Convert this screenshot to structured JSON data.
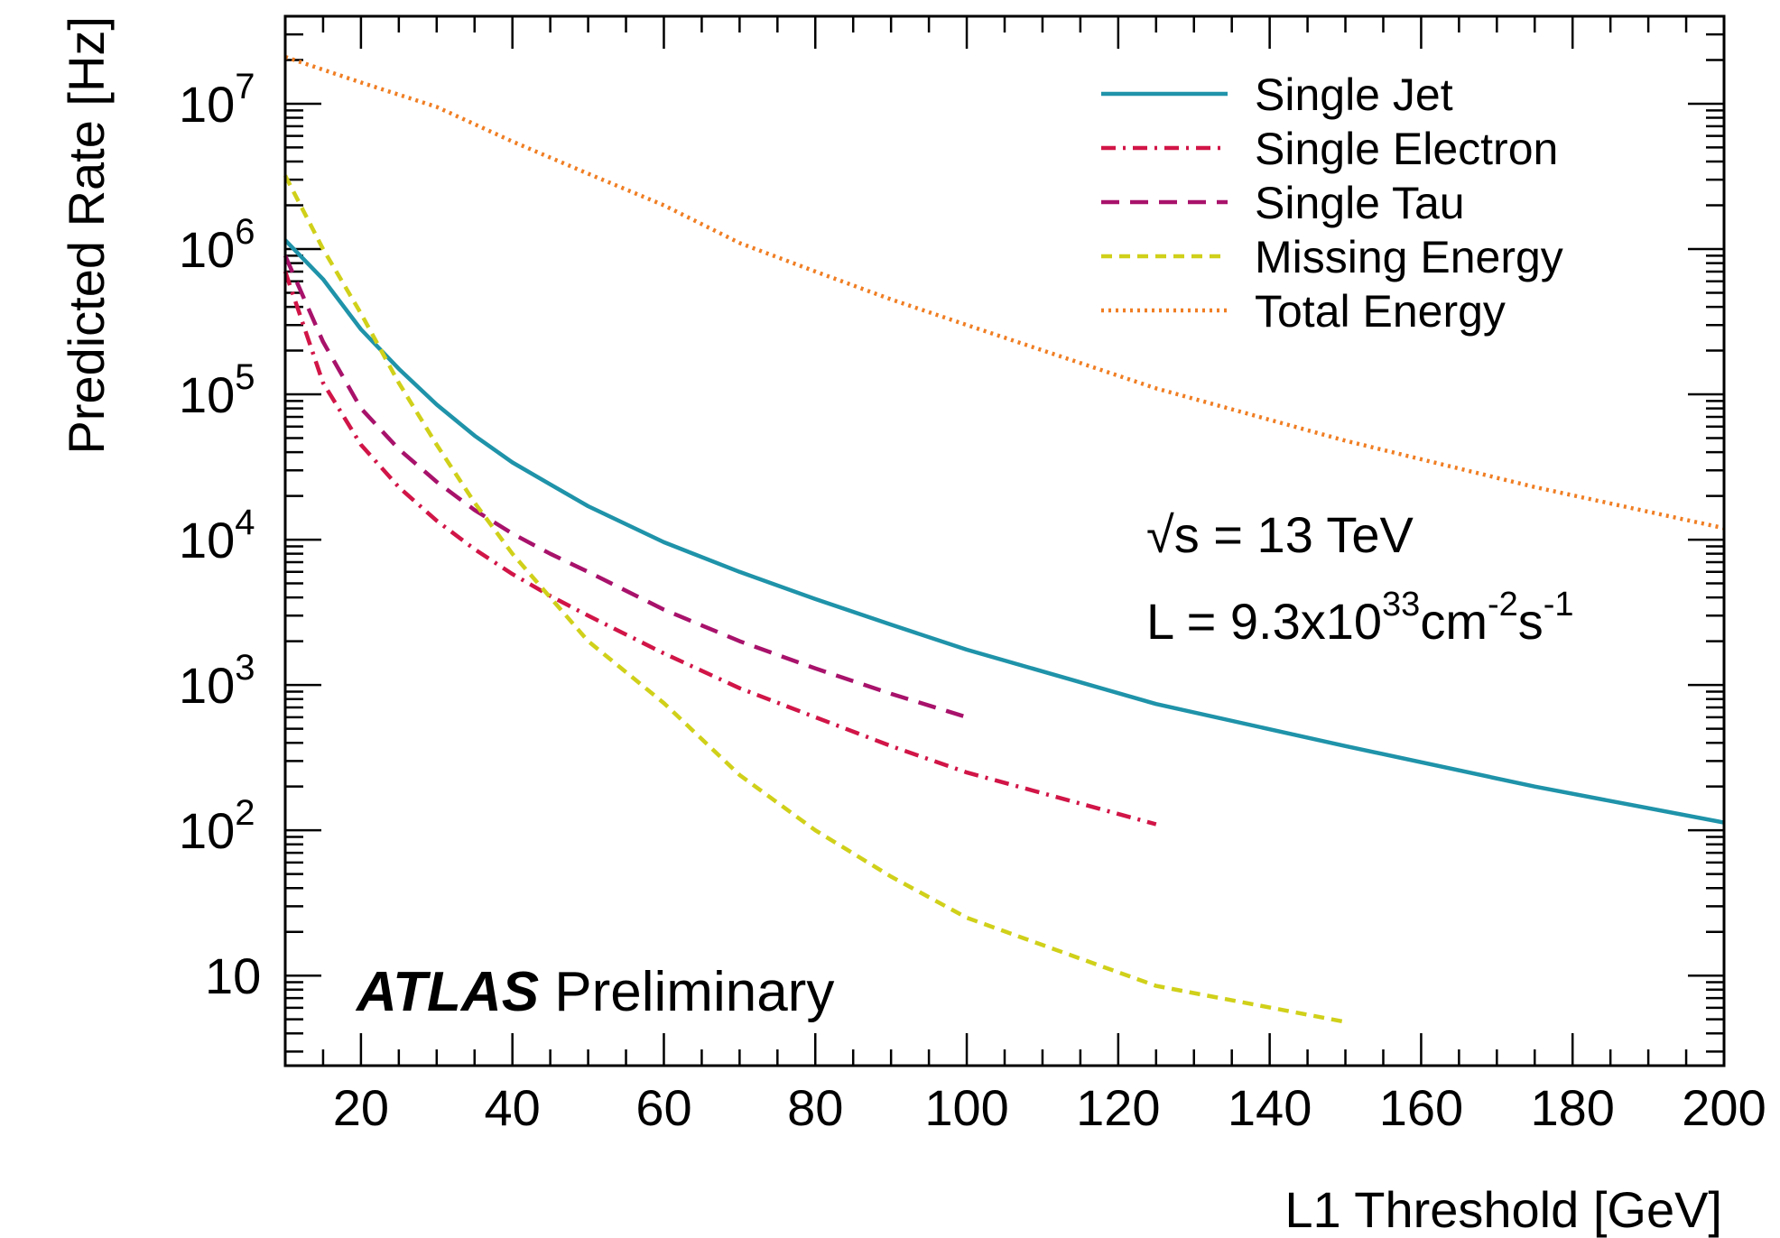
{
  "chart_data": {
    "type": "line",
    "xlabel": "L1 Threshold [GeV]",
    "ylabel": "Predicted Rate [Hz]",
    "xlim": [
      10,
      200
    ],
    "ylim": [
      2.4,
      40000000
    ],
    "yscale": "log",
    "x_ticks": [
      20,
      40,
      60,
      80,
      100,
      120,
      140,
      160,
      180,
      200
    ],
    "y_ticks": [
      {
        "value": 10,
        "base": "10",
        "exp": ""
      },
      {
        "value": 100,
        "base": "10",
        "exp": "2"
      },
      {
        "value": 1000,
        "base": "10",
        "exp": "3"
      },
      {
        "value": 10000,
        "base": "10",
        "exp": "4"
      },
      {
        "value": 100000,
        "base": "10",
        "exp": "5"
      },
      {
        "value": 1000000,
        "base": "10",
        "exp": "6"
      },
      {
        "value": 10000000,
        "base": "10",
        "exp": "7"
      }
    ],
    "legend_position": "top-right",
    "series": [
      {
        "name": "Single Jet",
        "color": "#1f93a9",
        "dash": "solid",
        "x": [
          10,
          15,
          20,
          25,
          30,
          35,
          40,
          45,
          50,
          60,
          70,
          80,
          90,
          100,
          125,
          150,
          175,
          200
        ],
        "y": [
          1150000,
          620000,
          280000,
          150000,
          85000,
          52000,
          34000,
          24000,
          17000,
          9600,
          6000,
          3900,
          2600,
          1750,
          740,
          380,
          200,
          113
        ]
      },
      {
        "name": "Single Electron",
        "color": "#d11547",
        "dash": "dashdot",
        "x": [
          10,
          15,
          20,
          25,
          30,
          35,
          40,
          45,
          50,
          60,
          70,
          80,
          90,
          100,
          125
        ],
        "y": [
          700000,
          120000,
          45000,
          23000,
          13500,
          8600,
          5800,
          4100,
          3000,
          1650,
          950,
          600,
          380,
          250,
          110
        ]
      },
      {
        "name": "Single Tau",
        "color": "#a8126b",
        "dash": "dashed",
        "x": [
          10,
          15,
          20,
          25,
          30,
          35,
          40,
          45,
          50,
          60,
          70,
          80,
          90,
          100
        ],
        "y": [
          900000,
          230000,
          80000,
          42000,
          25000,
          16000,
          11000,
          8000,
          6000,
          3300,
          2000,
          1300,
          870,
          600
        ]
      },
      {
        "name": "Missing Energy",
        "color": "#d0d01a",
        "dash": "shortdash",
        "x": [
          10,
          15,
          20,
          25,
          30,
          35,
          40,
          50,
          60,
          70,
          80,
          90,
          100,
          125,
          150
        ],
        "y": [
          3200000,
          1000000,
          360000,
          120000,
          45000,
          18000,
          8000,
          2000,
          750,
          240,
          100,
          48,
          25,
          8.5,
          4.8
        ]
      },
      {
        "name": "Total Energy",
        "color": "#f07e23",
        "dash": "dotted",
        "x": [
          10,
          20,
          30,
          40,
          50,
          60,
          70,
          80,
          90,
          100,
          125,
          150,
          175,
          200
        ],
        "y": [
          21000000,
          14000000,
          9500000,
          5500000,
          3300000,
          2000000,
          1100000,
          700000,
          450000,
          300000,
          110000,
          48000,
          23000,
          12000
        ]
      }
    ],
    "annotations": {
      "sqrt_s_symbol": "√s",
      "energy": " = 13 TeV",
      "lumi_prefix": "L = 9.3x10",
      "lumi_exp1": "33",
      "lumi_mid": "cm",
      "lumi_exp2": "-2",
      "lumi_s": "s",
      "lumi_exp3": "-1",
      "atlas": "ATLAS",
      "preliminary": " Preliminary"
    }
  }
}
